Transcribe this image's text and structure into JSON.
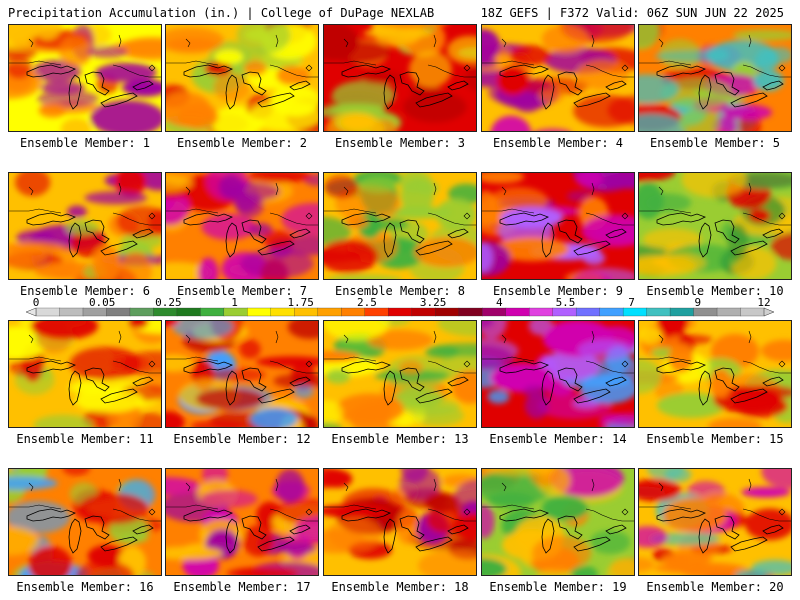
{
  "header": {
    "title": "Precipitation Accumulation (in.) | College of DuPage NEXLAB",
    "run_info": "18Z GEFS | F372 Valid: 06Z SUN JUN 22 2025"
  },
  "colorbar": {
    "tick_labels": [
      "0",
      "0.05",
      "0.25",
      "1",
      "1.75",
      "2.5",
      "3.25",
      "4",
      "5.5",
      "7",
      "9",
      "12"
    ],
    "colors": [
      "#d9d9d9",
      "#bdbdbd",
      "#a0a0a0",
      "#808080",
      "#5e9e5e",
      "#2e8b2e",
      "#1f7a1f",
      "#3fb03f",
      "#9acd32",
      "#ffff00",
      "#ffe000",
      "#ffc000",
      "#ffa000",
      "#ff8000",
      "#ff4000",
      "#e00000",
      "#c00000",
      "#a00000",
      "#800020",
      "#a0006a",
      "#d000b0",
      "#e040e0",
      "#b060ff",
      "#7070ff",
      "#40a0ff",
      "#00e0ff",
      "#40c0c0",
      "#20a0a0",
      "#909090",
      "#b0b0b0",
      "#c8c8c8"
    ]
  },
  "members": [
    {
      "label": "Ensemble Member: 1",
      "palette": [
        "#ffff00",
        "#ff8000",
        "#e00000",
        "#ffc000",
        "#a000a0"
      ]
    },
    {
      "label": "Ensemble Member: 2",
      "palette": [
        "#ffc000",
        "#ff8000",
        "#9acd32",
        "#e00000",
        "#ffff00"
      ]
    },
    {
      "label": "Ensemble Member: 3",
      "palette": [
        "#e00000",
        "#ff8000",
        "#ffc000",
        "#c00000",
        "#9acd32"
      ]
    },
    {
      "label": "Ensemble Member: 4",
      "palette": [
        "#ffc000",
        "#ff8000",
        "#e00000",
        "#a000a0",
        "#d000b0"
      ]
    },
    {
      "label": "Ensemble Member: 5",
      "palette": [
        "#ff8000",
        "#e00000",
        "#9acd32",
        "#d000b0",
        "#40c0c0"
      ]
    },
    {
      "label": "Ensemble Member: 6",
      "palette": [
        "#ffc000",
        "#ff8000",
        "#e00000",
        "#9acd32",
        "#a000a0"
      ]
    },
    {
      "label": "Ensemble Member: 7",
      "palette": [
        "#ff8000",
        "#e00000",
        "#a000a0",
        "#d000b0",
        "#ffc000"
      ]
    },
    {
      "label": "Ensemble Member: 8",
      "palette": [
        "#ffc000",
        "#9acd32",
        "#e00000",
        "#ff8000",
        "#3fb03f"
      ]
    },
    {
      "label": "Ensemble Member: 9",
      "palette": [
        "#e00000",
        "#a000a0",
        "#d000b0",
        "#ff8000",
        "#b060ff"
      ]
    },
    {
      "label": "Ensemble Member: 10",
      "palette": [
        "#9acd32",
        "#3fb03f",
        "#ffc000",
        "#e00000",
        "#2e8b2e"
      ]
    },
    {
      "label": "Ensemble Member: 11",
      "palette": [
        "#ffc000",
        "#ff8000",
        "#e00000",
        "#9acd32",
        "#ffff00"
      ]
    },
    {
      "label": "Ensemble Member: 12",
      "palette": [
        "#ff8000",
        "#ffc000",
        "#e00000",
        "#c00000",
        "#40a0ff"
      ]
    },
    {
      "label": "Ensemble Member: 13",
      "palette": [
        "#ffc000",
        "#9acd32",
        "#ff8000",
        "#3fb03f",
        "#ffff00"
      ]
    },
    {
      "label": "Ensemble Member: 14",
      "palette": [
        "#e00000",
        "#a000a0",
        "#d000b0",
        "#40a0ff",
        "#b060ff"
      ]
    },
    {
      "label": "Ensemble Member: 15",
      "palette": [
        "#ffc000",
        "#ff8000",
        "#e00000",
        "#ffff00",
        "#9acd32"
      ]
    },
    {
      "label": "Ensemble Member: 16",
      "palette": [
        "#ff8000",
        "#9acd32",
        "#ffc000",
        "#e00000",
        "#40a0ff"
      ]
    },
    {
      "label": "Ensemble Member: 17",
      "palette": [
        "#ff8000",
        "#e00000",
        "#a000a0",
        "#ffc000",
        "#d000b0"
      ]
    },
    {
      "label": "Ensemble Member: 18",
      "palette": [
        "#ffc000",
        "#ff8000",
        "#e00000",
        "#c00000",
        "#a000a0"
      ]
    },
    {
      "label": "Ensemble Member: 19",
      "palette": [
        "#9acd32",
        "#ffc000",
        "#3fb03f",
        "#ff8000",
        "#d000b0"
      ]
    },
    {
      "label": "Ensemble Member: 20",
      "palette": [
        "#ffc000",
        "#ff8000",
        "#e00000",
        "#d000b0",
        "#40c0c0"
      ]
    }
  ]
}
